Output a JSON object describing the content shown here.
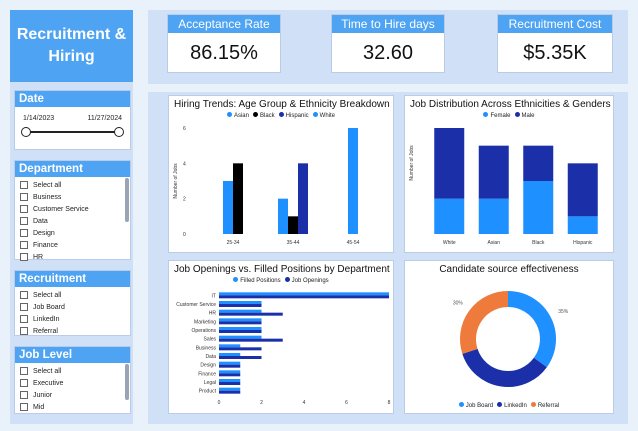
{
  "title": "Recruitment & Hiring",
  "date_slicer": {
    "label": "Date",
    "start": "1/14/2023",
    "end": "11/27/2024"
  },
  "department_slicer": {
    "label": "Department",
    "items": [
      "Select all",
      "Business",
      "Customer Service",
      "Data",
      "Design",
      "Finance",
      "HR"
    ]
  },
  "source_slicer": {
    "label": "Recruitment Source",
    "items": [
      "Select all",
      "Job Board",
      "LinkedIn",
      "Referral"
    ]
  },
  "level_slicer": {
    "label": "Job Level",
    "items": [
      "Select all",
      "Executive",
      "Junior",
      "Mid"
    ]
  },
  "kpis": [
    {
      "label": "Acceptance Rate",
      "value": "86.15%"
    },
    {
      "label": "Time to Hire days",
      "value": "32.60"
    },
    {
      "label": "Recruitment Cost",
      "value": "$5.35K"
    }
  ],
  "colors": {
    "asian": "#1e90ff",
    "black": "#000000",
    "hispanic": "#1a2fa8",
    "white": "#1e90ff",
    "female": "#1e90ff",
    "male": "#1a2fa8",
    "filled": "#1e90ff",
    "openings": "#1a2fa8",
    "job_board": "#1e90ff",
    "linkedin": "#1a2fa8",
    "referral": "#ee7a3b"
  },
  "chart_data": [
    {
      "type": "bar",
      "title": "Hiring Trends: Age Group & Ethnicity Breakdown",
      "ylabel": "Number of Jobs",
      "categories": [
        "25-34",
        "35-44",
        "45-54"
      ],
      "ylim": [
        0,
        6
      ],
      "yticks": [
        "0",
        "2",
        "4",
        "6"
      ],
      "series": [
        {
          "name": "Asian",
          "values": [
            3,
            2,
            null
          ]
        },
        {
          "name": "Black",
          "values": [
            4,
            1,
            null
          ]
        },
        {
          "name": "Hispanic",
          "values": [
            null,
            4,
            null
          ]
        },
        {
          "name": "White",
          "values": [
            null,
            null,
            6
          ]
        }
      ]
    },
    {
      "type": "bar",
      "title": "Job Distribution Across Ethnicities & Genders",
      "ylabel": "Number of Jobs",
      "categories": [
        "White",
        "Asian",
        "Black",
        "Hispanic"
      ],
      "stacked": true,
      "series": [
        {
          "name": "Female",
          "values": [
            2,
            2,
            3,
            1
          ]
        },
        {
          "name": "Male",
          "values": [
            4,
            3,
            2,
            3
          ]
        }
      ]
    },
    {
      "type": "bar",
      "orientation": "horizontal",
      "title": "Job Openings vs. Filled Positions by Department",
      "categories": [
        "IT",
        "Customer Service",
        "HR",
        "Marketing",
        "Operations",
        "Sales",
        "Business",
        "Data",
        "Design",
        "Finance",
        "Legal",
        "Product"
      ],
      "xlim": [
        0,
        8
      ],
      "xticks": [
        "0",
        "2",
        "4",
        "6",
        "8"
      ],
      "series": [
        {
          "name": "Filled Positions",
          "values": [
            8,
            2,
            2,
            2,
            2,
            2,
            1,
            1,
            1,
            1,
            1,
            1
          ]
        },
        {
          "name": "Job Openings",
          "values": [
            8,
            2,
            3,
            2,
            2,
            3,
            2,
            2,
            1,
            1,
            1,
            1
          ]
        }
      ]
    },
    {
      "type": "pie",
      "donut": true,
      "title": "Candidate source effectiveness",
      "categories": [
        "Job Board",
        "LinkedIn",
        "Referral"
      ],
      "values": [
        35,
        35,
        30
      ],
      "labels": [
        "35%",
        "35%",
        "30%"
      ]
    }
  ]
}
